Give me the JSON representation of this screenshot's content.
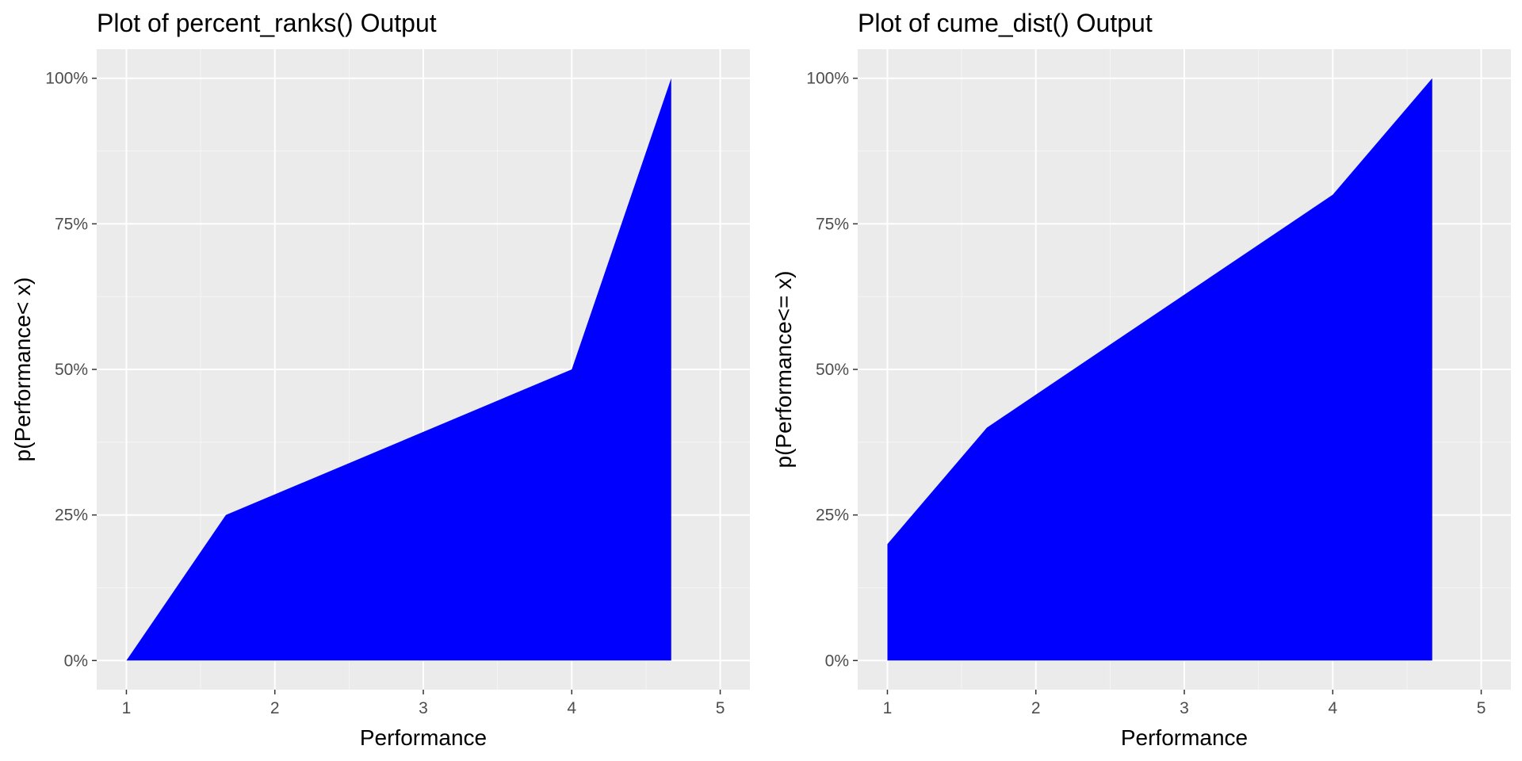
{
  "colors": {
    "panel_background": "#ebebeb",
    "grid_major": "#ffffff",
    "grid_minor": "#f5f5f5",
    "area_fill": "#0000ff",
    "tick_text": "#4d4d4d",
    "tick_mark": "#333333"
  },
  "chart_data": [
    {
      "type": "area",
      "title": "Plot of percent_ranks() Output",
      "xlabel": "Performance",
      "ylabel": "p(Performance< x)",
      "x": [
        1,
        1.67,
        4,
        4.67,
        4.67
      ],
      "y": [
        0,
        0.25,
        0.5,
        1.0,
        0
      ],
      "xlim": [
        0.8,
        5.2
      ],
      "ylim": [
        -0.05,
        1.05
      ],
      "x_ticks": [
        1,
        2,
        3,
        4,
        5
      ],
      "x_tick_labels": [
        "1",
        "2",
        "3",
        "4",
        "5"
      ],
      "y_ticks": [
        0,
        0.25,
        0.5,
        0.75,
        1.0
      ],
      "y_tick_labels": [
        "0%",
        "25%",
        "50%",
        "75%",
        "100%"
      ],
      "grid": true,
      "legend": "none"
    },
    {
      "type": "area",
      "title": "Plot of cume_dist() Output",
      "xlabel": "Performance",
      "ylabel": "p(Performance<= x)",
      "x": [
        1,
        1,
        1.67,
        4,
        4.67,
        4.67
      ],
      "y": [
        0,
        0.2,
        0.4,
        0.8,
        1.0,
        0
      ],
      "xlim": [
        0.8,
        5.2
      ],
      "ylim": [
        -0.05,
        1.05
      ],
      "x_ticks": [
        1,
        2,
        3,
        4,
        5
      ],
      "x_tick_labels": [
        "1",
        "2",
        "3",
        "4",
        "5"
      ],
      "y_ticks": [
        0,
        0.25,
        0.5,
        0.75,
        1.0
      ],
      "y_tick_labels": [
        "0%",
        "25%",
        "50%",
        "75%",
        "100%"
      ],
      "grid": true,
      "legend": "none"
    }
  ]
}
